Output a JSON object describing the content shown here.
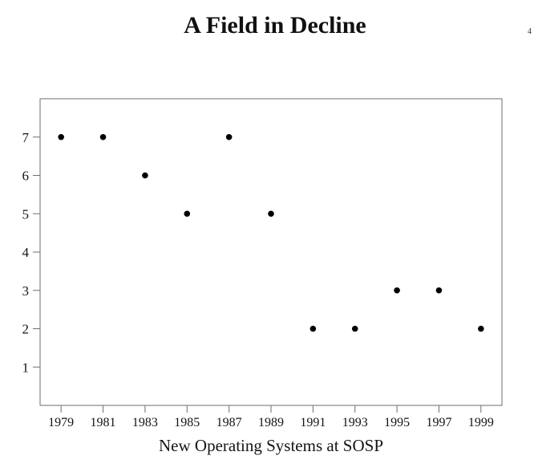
{
  "slide": {
    "page_number": "4"
  },
  "chart_data": {
    "type": "scatter",
    "title": "A Field in Decline",
    "xlabel": "New Operating Systems at SOSP",
    "ylabel": "",
    "x": [
      1979,
      1981,
      1983,
      1985,
      1987,
      1989,
      1991,
      1993,
      1995,
      1997,
      1999
    ],
    "y": [
      7,
      7,
      6,
      5,
      7,
      5,
      2,
      2,
      3,
      3,
      2
    ],
    "xticks": [
      1979,
      1981,
      1983,
      1985,
      1987,
      1989,
      1991,
      1993,
      1995,
      1997,
      1999
    ],
    "yticks": [
      1,
      2,
      3,
      4,
      5,
      6,
      7
    ],
    "xlim": [
      1978,
      2000
    ],
    "ylim": [
      0,
      8
    ],
    "grid": false,
    "legend": "none",
    "colors": {
      "point": "#000000",
      "axis": "#6e6e6e",
      "text": "#141414"
    }
  }
}
